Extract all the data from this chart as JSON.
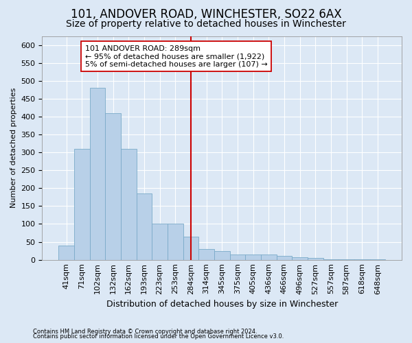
{
  "title1": "101, ANDOVER ROAD, WINCHESTER, SO22 6AX",
  "title2": "Size of property relative to detached houses in Winchester",
  "xlabel": "Distribution of detached houses by size in Winchester",
  "ylabel": "Number of detached properties",
  "categories": [
    "41sqm",
    "71sqm",
    "102sqm",
    "132sqm",
    "162sqm",
    "193sqm",
    "223sqm",
    "253sqm",
    "284sqm",
    "314sqm",
    "345sqm",
    "375sqm",
    "405sqm",
    "436sqm",
    "466sqm",
    "496sqm",
    "527sqm",
    "557sqm",
    "587sqm",
    "618sqm",
    "648sqm"
  ],
  "values": [
    40,
    310,
    480,
    410,
    310,
    185,
    100,
    100,
    65,
    30,
    25,
    15,
    15,
    15,
    10,
    8,
    5,
    2,
    1,
    1,
    1
  ],
  "bar_color": "#b8d0e8",
  "bar_edge_color": "#7aaac8",
  "vline_x": 8,
  "vline_color": "#cc0000",
  "annotation_text": "101 ANDOVER ROAD: 289sqm\n← 95% of detached houses are smaller (1,922)\n5% of semi-detached houses are larger (107) →",
  "annotation_box_color": "#ffffff",
  "annotation_box_edge": "#cc0000",
  "background_color": "#dce8f5",
  "grid_color": "#ffffff",
  "footer1": "Contains HM Land Registry data © Crown copyright and database right 2024.",
  "footer2": "Contains public sector information licensed under the Open Government Licence v3.0.",
  "ylim": [
    0,
    625
  ],
  "yticks": [
    0,
    50,
    100,
    150,
    200,
    250,
    300,
    350,
    400,
    450,
    500,
    550,
    600
  ],
  "title1_fontsize": 12,
  "title2_fontsize": 10,
  "annotation_fontsize": 8,
  "ylabel_fontsize": 8,
  "xlabel_fontsize": 9,
  "tick_fontsize": 8,
  "footer_fontsize": 6
}
